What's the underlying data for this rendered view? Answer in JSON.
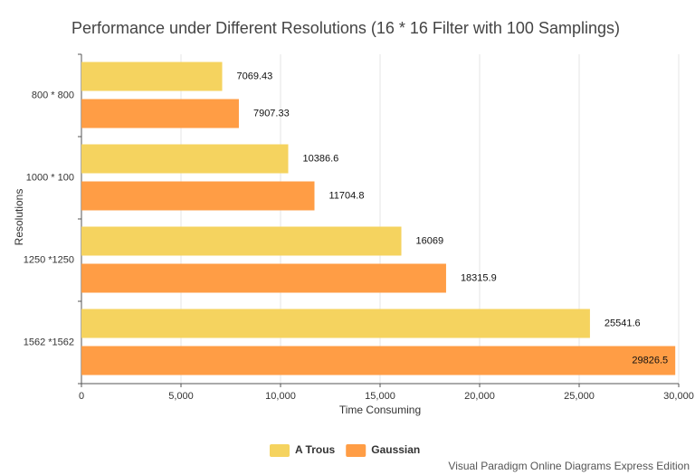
{
  "chart_data": {
    "type": "bar",
    "orientation": "horizontal",
    "title": "Performance under Different Resolutions (16 * 16 Filter with 100 Samplings)",
    "x_label": "Time Consuming",
    "y_label": "Resolutions",
    "categories": [
      "800 * 800",
      "1000 * 100",
      "1250 *1250",
      "1562 *1562"
    ],
    "series": [
      {
        "name": "A Trous",
        "color": "#f5d35f",
        "values": [
          7069.43,
          10386.6,
          16069,
          25541.6
        ]
      },
      {
        "name": "Gaussian",
        "color": "#ff9d45",
        "values": [
          7907.33,
          11704.8,
          18315.9,
          29826.5
        ]
      }
    ],
    "xlim": [
      0,
      30000
    ],
    "xticks": [
      0,
      {
        "value": 5000,
        "label": "5,000"
      },
      {
        "value": 10000,
        "label": "10,000"
      },
      {
        "value": 15000,
        "label": "15,000"
      },
      {
        "value": 20000,
        "label": "20,000"
      },
      {
        "value": 25000,
        "label": "25,000"
      },
      {
        "value": 30000,
        "label": "30,000"
      }
    ],
    "grid": true,
    "legend": "bottom",
    "footer": "Visual Paradigm Online Diagrams Express Edition"
  }
}
